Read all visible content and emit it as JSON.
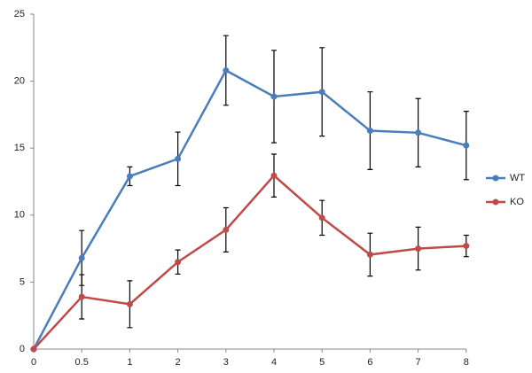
{
  "chart_data": {
    "type": "line",
    "categories": [
      "0",
      "0.5",
      "1",
      "2",
      "3",
      "4",
      "5",
      "6",
      "7",
      "8"
    ],
    "series": [
      {
        "name": "WT",
        "color": "#4a7ebb",
        "values": [
          0,
          6.8,
          12.9,
          14.2,
          20.8,
          18.85,
          19.2,
          16.3,
          16.15,
          15.2
        ],
        "errors": [
          0,
          2.05,
          0.7,
          2.0,
          2.6,
          3.45,
          3.3,
          2.9,
          2.55,
          2.55
        ]
      },
      {
        "name": "KO",
        "color": "#be4b48",
        "values": [
          0,
          3.9,
          3.35,
          6.5,
          8.9,
          12.95,
          9.8,
          7.05,
          7.5,
          7.7
        ],
        "errors": [
          0,
          1.65,
          1.75,
          0.9,
          1.65,
          1.6,
          1.3,
          1.6,
          1.6,
          0.8
        ]
      }
    ],
    "ylim": [
      0,
      25
    ],
    "yticks": [
      0,
      5,
      10,
      15,
      20,
      25
    ],
    "grid": false,
    "legend": "right"
  }
}
